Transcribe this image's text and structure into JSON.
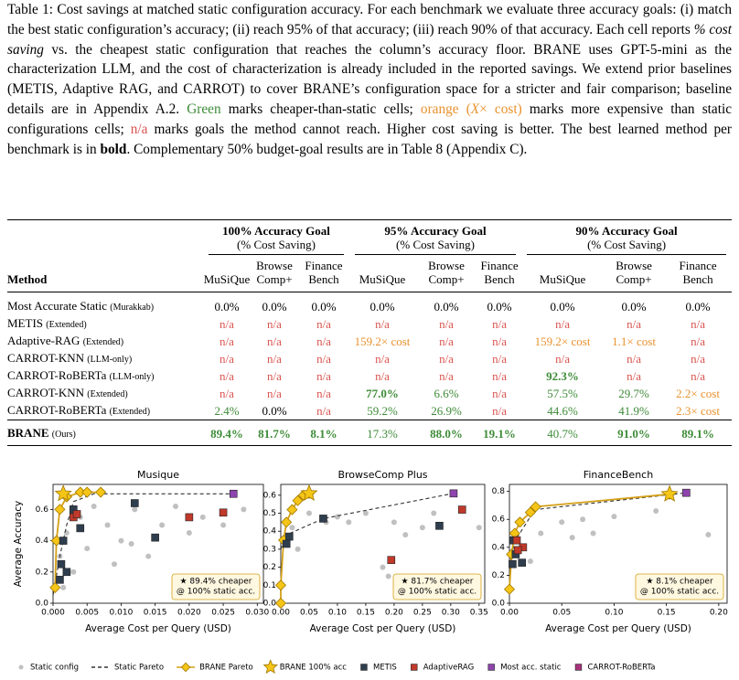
{
  "caption": {
    "parts": [
      "Table 1: Cost savings at matched static configuration accuracy. For each benchmark we evaluate three accuracy goals: (i) match the best static configuration’s accuracy; (ii) reach 95% of that accuracy; (iii) reach 90% of that accuracy. Each cell reports ",
      "% cost saving",
      " vs. the cheapest static configuration that reaches the column’s accuracy floor. BRANE uses GPT-5-mini as the characterization LLM, and the cost of characterization is already included in the reported savings. We extend prior baselines (METIS, Adaptive RAG, and CARROT) to cover BRANE’s configuration space for a stricter and fair comparison; baseline details are in Appendix A.2. ",
      "Green",
      " marks cheaper-than-static cells; ",
      "orange (",
      "X",
      "× cost)",
      " marks more expensive than static configurations cells; ",
      "n/a",
      " marks goals the method cannot reach.  Higher cost saving is better. The best learned method per benchmark is in ",
      "bold",
      ". Complementary 50% budget-goal results are in Table 8 (Appendix C)."
    ]
  },
  "table": {
    "method_header": "Method",
    "groups": [
      {
        "title": "100% Accuracy Goal",
        "subtitle": "(% Cost Saving)"
      },
      {
        "title": "95% Accuracy Goal",
        "subtitle": "(% Cost Saving)"
      },
      {
        "title": "90% Accuracy Goal",
        "subtitle": "(% Cost Saving)"
      }
    ],
    "columns": [
      "MuSiQue",
      "Browse Comp+",
      "Finance Bench",
      "MuSiQue",
      "Browse Comp+",
      "Finance Bench",
      "MuSiQue",
      "Browse Comp+",
      "Finance Bench"
    ],
    "rows": [
      {
        "method": "Most Accurate Static",
        "note": "(Murakkab)",
        "cells": [
          "0.0%",
          "0.0%",
          "0.0%",
          "0.0%",
          "0.0%",
          "0.0%",
          "0.0%",
          "0.0%",
          "0.0%"
        ],
        "colors": [
          "#000000",
          "#000000",
          "#000000",
          "#000000",
          "#000000",
          "#000000",
          "#000000",
          "#000000",
          "#000000"
        ],
        "bold": []
      },
      {
        "method": "METIS",
        "note": "(Extended)",
        "cells": [
          "n/a",
          "n/a",
          "n/a",
          "n/a",
          "n/a",
          "n/a",
          "n/a",
          "n/a",
          "n/a"
        ],
        "colors": [
          "#d9534f",
          "#d9534f",
          "#d9534f",
          "#d9534f",
          "#d9534f",
          "#d9534f",
          "#d9534f",
          "#d9534f",
          "#d9534f"
        ],
        "bold": []
      },
      {
        "method": "Adaptive-RAG",
        "note": "(Extended)",
        "cells": [
          "n/a",
          "n/a",
          "n/a",
          "159.2× cost",
          "n/a",
          "n/a",
          "159.2× cost",
          "1.1× cost",
          "n/a"
        ],
        "colors": [
          "#d9534f",
          "#d9534f",
          "#d9534f",
          "#e8912d",
          "#d9534f",
          "#d9534f",
          "#e8912d",
          "#e8912d",
          "#d9534f"
        ],
        "bold": []
      },
      {
        "method": "CARROT-KNN",
        "note": "(LLM-only)",
        "cells": [
          "n/a",
          "n/a",
          "n/a",
          "n/a",
          "n/a",
          "n/a",
          "n/a",
          "n/a",
          "n/a"
        ],
        "colors": [
          "#d9534f",
          "#d9534f",
          "#d9534f",
          "#d9534f",
          "#d9534f",
          "#d9534f",
          "#d9534f",
          "#d9534f",
          "#d9534f"
        ],
        "bold": []
      },
      {
        "method": "CARROT-RoBERTa",
        "note": "(LLM-only)",
        "cells": [
          "n/a",
          "n/a",
          "n/a",
          "n/a",
          "n/a",
          "n/a",
          "92.3%",
          "n/a",
          "n/a"
        ],
        "colors": [
          "#d9534f",
          "#d9534f",
          "#d9534f",
          "#d9534f",
          "#d9534f",
          "#d9534f",
          "#3d8b37",
          "#d9534f",
          "#d9534f"
        ],
        "bold": [
          6
        ]
      },
      {
        "method": "CARROT-KNN",
        "note": "(Extended)",
        "cells": [
          "n/a",
          "n/a",
          "n/a",
          "77.0%",
          "6.6%",
          "n/a",
          "57.5%",
          "29.7%",
          "2.2× cost"
        ],
        "colors": [
          "#d9534f",
          "#d9534f",
          "#d9534f",
          "#3d8b37",
          "#3d8b37",
          "#d9534f",
          "#3d8b37",
          "#3d8b37",
          "#e8912d"
        ],
        "bold": [
          3
        ]
      },
      {
        "method": "CARROT-RoBERTa",
        "note": "(Extended)",
        "cells": [
          "2.4%",
          "0.0%",
          "n/a",
          "59.2%",
          "26.9%",
          "n/a",
          "44.6%",
          "41.9%",
          "2.3× cost"
        ],
        "colors": [
          "#3d8b37",
          "#000000",
          "#d9534f",
          "#3d8b37",
          "#3d8b37",
          "#d9534f",
          "#3d8b37",
          "#3d8b37",
          "#e8912d"
        ],
        "bold": []
      },
      {
        "method": "BRANE",
        "note": "(Ours)",
        "method_bold": true,
        "cells": [
          "89.4%",
          "81.7%",
          "8.1%",
          "17.3%",
          "88.0%",
          "19.1%",
          "40.7%",
          "91.0%",
          "89.1%"
        ],
        "colors": [
          "#3d8b37",
          "#3d8b37",
          "#3d8b37",
          "#3d8b37",
          "#3d8b37",
          "#3d8b37",
          "#3d8b37",
          "#3d8b37",
          "#3d8b37"
        ],
        "bold": [
          0,
          1,
          2,
          4,
          5,
          7,
          8
        ]
      }
    ]
  },
  "chart_data": [
    {
      "type": "scatter",
      "title": "Musique",
      "xlabel": "Average Cost per Query (USD)",
      "ylabel": "Average Accuracy",
      "xlim": [
        0,
        0.0309
      ],
      "ylim": [
        0,
        0.76
      ],
      "xticks": [
        {
          "value": 0,
          "label": "0.000"
        },
        {
          "value": 0.005,
          "label": "0.005"
        },
        {
          "value": 0.01,
          "label": "0.010"
        },
        {
          "value": 0.015,
          "label": "0.015"
        },
        {
          "value": 0.02,
          "label": "0.020"
        },
        {
          "value": 0.025,
          "label": "0.025"
        },
        {
          "value": 0.03,
          "label": "0.030"
        }
      ],
      "yticks": [
        {
          "value": 0,
          "label": "0.0"
        },
        {
          "value": 0.2,
          "label": "0.2"
        },
        {
          "value": 0.4,
          "label": "0.4"
        },
        {
          "value": 0.6,
          "label": "0.6"
        }
      ],
      "annotation": [
        "★ 89.4% cheaper",
        "@ 100% static acc."
      ],
      "series": [
        {
          "name": "Static config",
          "color": "#b5b5b5",
          "marker": "circle",
          "line": null,
          "x": [
            0.001,
            0.002,
            0.003,
            0.004,
            0.006,
            0.008,
            0.01,
            0.012,
            0.014,
            0.016,
            0.018,
            0.02,
            0.022,
            0.025,
            0.028,
            0.003,
            0.005,
            0.009,
            0.0015,
            0.0115
          ],
          "values": [
            0.3,
            0.45,
            0.6,
            0.55,
            0.62,
            0.5,
            0.4,
            0.6,
            0.3,
            0.5,
            0.62,
            0.45,
            0.55,
            0.5,
            0.6,
            0.2,
            0.35,
            0.25,
            0.1,
            0.38
          ]
        },
        {
          "name": "Static Pareto",
          "color": "#333333",
          "marker": "none",
          "line": "dashed",
          "x": [
            0,
            0.001,
            0.002,
            0.003,
            0.006,
            0.0265
          ],
          "values": [
            0.05,
            0.3,
            0.5,
            0.65,
            0.7,
            0.7
          ]
        },
        {
          "name": "BRANE Pareto",
          "color": "#f5c518",
          "marker": "diamond",
          "line": "solid",
          "x": [
            0.0003,
            0.0005,
            0.001,
            0.002,
            0.004,
            0.005,
            0.007
          ],
          "values": [
            0.1,
            0.4,
            0.6,
            0.68,
            0.71,
            0.71,
            0.71
          ]
        },
        {
          "name": "BRANE 100% acc",
          "color": "#f5c518",
          "marker": "star",
          "line": null,
          "x": [
            0.0015
          ],
          "values": [
            0.7
          ]
        },
        {
          "name": "METIS",
          "color": "#2f3e4e",
          "marker": "square",
          "line": null,
          "x": [
            0.0015,
            0.002,
            0.0012,
            0.004,
            0.012,
            0.015,
            0.003,
            0.001
          ],
          "values": [
            0.4,
            0.2,
            0.25,
            0.48,
            0.64,
            0.42,
            0.6,
            0.15
          ]
        },
        {
          "name": "AdaptiveRAG",
          "color": "#c0392b",
          "marker": "square",
          "line": null,
          "x": [
            0.003,
            0.0035,
            0.02,
            0.025
          ],
          "values": [
            0.55,
            0.57,
            0.55,
            0.58
          ]
        },
        {
          "name": "Most acc. static",
          "color": "#8e44ad",
          "marker": "square",
          "line": null,
          "x": [
            0.0265
          ],
          "values": [
            0.7
          ]
        },
        {
          "name": "CARROT-RoBERTa",
          "color": "#a8327a",
          "marker": "square",
          "line": null,
          "x": [],
          "values": []
        }
      ]
    },
    {
      "type": "scatter",
      "title": "BrowseComp Plus",
      "xlabel": "Average Cost per Query (USD)",
      "xlim": [
        0,
        0.36
      ],
      "ylim": [
        0,
        0.66
      ],
      "xticks": [
        {
          "value": 0,
          "label": "0.00"
        },
        {
          "value": 0.05,
          "label": "0.05"
        },
        {
          "value": 0.1,
          "label": "0.10"
        },
        {
          "value": 0.15,
          "label": "0.15"
        },
        {
          "value": 0.2,
          "label": "0.20"
        },
        {
          "value": 0.25,
          "label": "0.25"
        },
        {
          "value": 0.3,
          "label": "0.30"
        },
        {
          "value": 0.35,
          "label": "0.35"
        }
      ],
      "yticks": [
        {
          "value": 0,
          "label": "0.0"
        },
        0.1,
        0.2,
        0.3,
        0.4,
        0.5,
        0.6
      ],
      "annotation": [
        "★ 81.7% cheaper",
        "@ 100% static acc."
      ],
      "series": [
        {
          "name": "Static config",
          "color": "#b5b5b5",
          "marker": "circle",
          "line": null,
          "x": [
            0.05,
            0.1,
            0.12,
            0.15,
            0.2,
            0.22,
            0.25,
            0.18,
            0.19,
            0.35,
            0.27,
            0.03,
            0.08,
            0.02
          ],
          "values": [
            0.5,
            0.48,
            0.45,
            0.5,
            0.45,
            0.38,
            0.42,
            0.2,
            0.15,
            0.42,
            0.5,
            0.3,
            0.45,
            0.42
          ]
        },
        {
          "name": "Static Pareto",
          "color": "#333333",
          "marker": "none",
          "line": "dashed",
          "x": [
            0,
            0.01,
            0.075,
            0.305
          ],
          "values": [
            0.3,
            0.38,
            0.47,
            0.61
          ]
        },
        {
          "name": "BRANE Pareto",
          "color": "#f5c518",
          "marker": "diamond",
          "line": "solid",
          "x": [
            0,
            0,
            0.005,
            0.01,
            0.02,
            0.03,
            0.04,
            0.05
          ],
          "values": [
            0,
            0.1,
            0.35,
            0.45,
            0.52,
            0.57,
            0.6,
            0.61
          ]
        },
        {
          "name": "BRANE 100% acc",
          "color": "#f5c518",
          "marker": "star",
          "line": null,
          "x": [
            0.05
          ],
          "values": [
            0.61
          ]
        },
        {
          "name": "METIS",
          "color": "#2f3e4e",
          "marker": "square",
          "line": null,
          "x": [
            0.075,
            0.015,
            0.28,
            0.01
          ],
          "values": [
            0.47,
            0.37,
            0.43,
            0.33
          ]
        },
        {
          "name": "AdaptiveRAG",
          "color": "#c0392b",
          "marker": "square",
          "line": null,
          "x": [
            0.195,
            0.32
          ],
          "values": [
            0.24,
            0.52
          ]
        },
        {
          "name": "Most acc. static",
          "color": "#8e44ad",
          "marker": "square",
          "line": null,
          "x": [
            0.305
          ],
          "values": [
            0.61
          ]
        },
        {
          "name": "CARROT-RoBERTa",
          "color": "#a8327a",
          "marker": "square",
          "line": null,
          "x": [],
          "values": []
        }
      ]
    },
    {
      "type": "scatter",
      "title": "FinanceBench",
      "xlabel": "Average Cost per Query (USD)",
      "xlim": [
        0,
        0.208
      ],
      "ylim": [
        0,
        0.85
      ],
      "xticks": [
        {
          "value": 0,
          "label": "0.00"
        },
        {
          "value": 0.05,
          "label": "0.05"
        },
        {
          "value": 0.1,
          "label": "0.10"
        },
        {
          "value": 0.15,
          "label": "0.15"
        },
        {
          "value": 0.2,
          "label": "0.20"
        }
      ],
      "yticks": [
        {
          "value": 0,
          "label": "0.0"
        },
        0.2,
        0.4,
        0.6,
        0.8
      ],
      "annotation": [
        "★ 8.1% cheaper",
        "@ 100% static acc."
      ],
      "series": [
        {
          "name": "Static config",
          "color": "#b5b5b5",
          "marker": "circle",
          "line": null,
          "x": [
            0.03,
            0.05,
            0.06,
            0.08,
            0.1,
            0.14,
            0.19,
            0.07,
            0.02
          ],
          "values": [
            0.5,
            0.58,
            0.47,
            0.5,
            0.62,
            0.66,
            0.49,
            0.6,
            0.3
          ]
        },
        {
          "name": "Static Pareto",
          "color": "#333333",
          "marker": "none",
          "line": "dashed",
          "x": [
            0,
            0.005,
            0.01,
            0.02,
            0.025,
            0.169
          ],
          "values": [
            0.25,
            0.45,
            0.5,
            0.62,
            0.67,
            0.79
          ]
        },
        {
          "name": "BRANE Pareto",
          "color": "#f5c518",
          "marker": "diamond",
          "line": "solid",
          "x": [
            0,
            0.002,
            0.005,
            0.01,
            0.02,
            0.025,
            0.153
          ],
          "values": [
            0.1,
            0.35,
            0.5,
            0.58,
            0.65,
            0.69,
            0.78
          ]
        },
        {
          "name": "BRANE 100% acc",
          "color": "#f5c518",
          "marker": "star",
          "line": null,
          "x": [
            0.153
          ],
          "values": [
            0.78
          ]
        },
        {
          "name": "METIS",
          "color": "#2f3e4e",
          "marker": "square",
          "line": null,
          "x": [
            0.003,
            0.012,
            0.006,
            0.004
          ],
          "values": [
            0.28,
            0.29,
            0.35,
            0.45
          ]
        },
        {
          "name": "AdaptiveRAG",
          "color": "#c0392b",
          "marker": "square",
          "line": null,
          "x": [
            0.007,
            0.013,
            0.008
          ],
          "values": [
            0.45,
            0.4,
            0.38
          ]
        },
        {
          "name": "Most acc. static",
          "color": "#8e44ad",
          "marker": "square",
          "line": null,
          "x": [
            0.169
          ],
          "values": [
            0.79
          ]
        },
        {
          "name": "CARROT-RoBERTa",
          "color": "#a8327a",
          "marker": "square",
          "line": null,
          "x": [],
          "values": []
        }
      ]
    }
  ]
}
